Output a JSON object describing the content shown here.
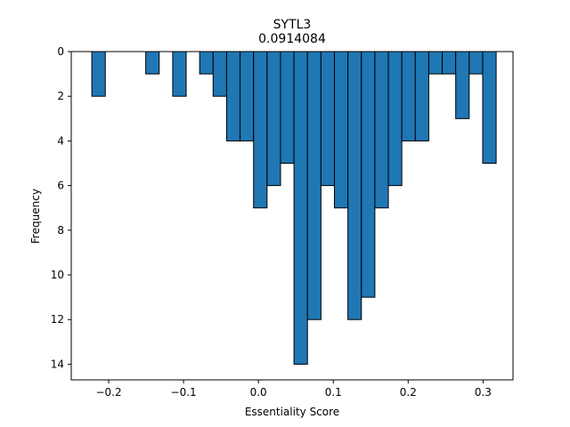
{
  "chart_data": {
    "type": "bar",
    "subtype": "histogram",
    "title": "SYTL3",
    "subtitle": "0.0914084",
    "xlabel": "Essentiality Score",
    "ylabel": "Frequency",
    "y_axis_inverted": true,
    "xlim": [
      -0.25,
      0.34
    ],
    "ylim": [
      0,
      14.7
    ],
    "xticks": [
      -0.2,
      -0.1,
      0.0,
      0.1,
      0.2,
      0.3
    ],
    "xtick_labels": [
      "−0.2",
      "−0.1",
      "0.0",
      "0.1",
      "0.2",
      "0.3"
    ],
    "yticks": [
      0,
      2,
      4,
      6,
      8,
      10,
      12,
      14
    ],
    "ytick_labels": [
      "0",
      "2",
      "4",
      "6",
      "8",
      "10",
      "12",
      "14"
    ],
    "bar_color": "#1f77b4",
    "edge_color": "#000000",
    "grid": false,
    "legend": "none",
    "bins": [
      {
        "x0": -0.2225,
        "x1": -0.2045,
        "count": 2
      },
      {
        "x0": -0.1505,
        "x1": -0.1325,
        "count": 1
      },
      {
        "x0": -0.1145,
        "x1": -0.0965,
        "count": 2
      },
      {
        "x0": -0.0785,
        "x1": -0.0605,
        "count": 1
      },
      {
        "x0": -0.0605,
        "x1": -0.0425,
        "count": 2
      },
      {
        "x0": -0.0425,
        "x1": -0.0245,
        "count": 4
      },
      {
        "x0": -0.0245,
        "x1": -0.0065,
        "count": 4
      },
      {
        "x0": -0.0065,
        "x1": 0.0115,
        "count": 7
      },
      {
        "x0": 0.0115,
        "x1": 0.0295,
        "count": 6
      },
      {
        "x0": 0.0295,
        "x1": 0.0475,
        "count": 5
      },
      {
        "x0": 0.0475,
        "x1": 0.0655,
        "count": 14
      },
      {
        "x0": 0.0655,
        "x1": 0.0835,
        "count": 12
      },
      {
        "x0": 0.0835,
        "x1": 0.1015,
        "count": 6
      },
      {
        "x0": 0.1015,
        "x1": 0.1195,
        "count": 7
      },
      {
        "x0": 0.1195,
        "x1": 0.1375,
        "count": 12
      },
      {
        "x0": 0.1375,
        "x1": 0.1555,
        "count": 11
      },
      {
        "x0": 0.1555,
        "x1": 0.1735,
        "count": 7
      },
      {
        "x0": 0.1735,
        "x1": 0.1915,
        "count": 6
      },
      {
        "x0": 0.1915,
        "x1": 0.2095,
        "count": 4
      },
      {
        "x0": 0.2095,
        "x1": 0.2275,
        "count": 4
      },
      {
        "x0": 0.2275,
        "x1": 0.2455,
        "count": 1
      },
      {
        "x0": 0.2455,
        "x1": 0.2635,
        "count": 1
      },
      {
        "x0": 0.2635,
        "x1": 0.2815,
        "count": 3
      },
      {
        "x0": 0.2815,
        "x1": 0.2995,
        "count": 1
      },
      {
        "x0": 0.2995,
        "x1": 0.3175,
        "count": 5
      }
    ]
  }
}
